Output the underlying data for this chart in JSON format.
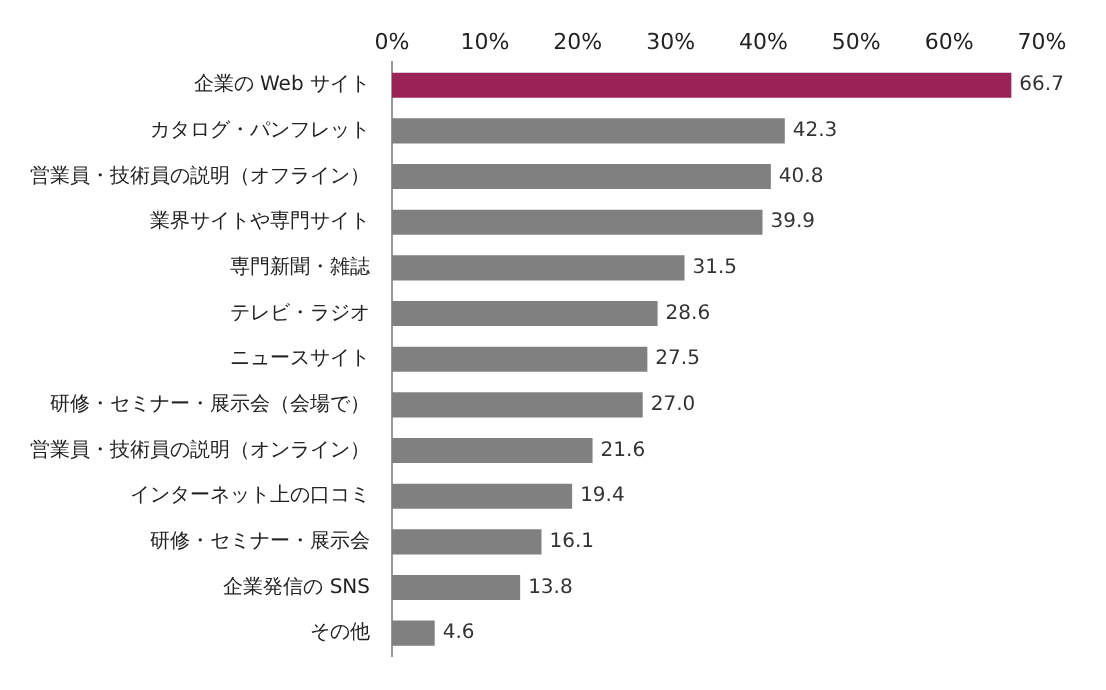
{
  "chart_data": {
    "type": "bar",
    "orientation": "horizontal",
    "categories": [
      "企業の Web サイト",
      "カタログ・パンフレット",
      "営業員・技術員の説明（オフライン）",
      "業界サイトや専門サイト",
      "専門新聞・雑誌",
      "テレビ・ラジオ",
      "ニュースサイト",
      "研修・セミナー・展示会（会場で）",
      "営業員・技術員の説明（オンライン）",
      "インターネット上の口コミ",
      "研修・セミナー・展示会",
      "企業発信の SNS",
      "その他"
    ],
    "values": [
      66.7,
      42.3,
      40.8,
      39.9,
      31.5,
      28.6,
      27.5,
      27.0,
      21.6,
      19.4,
      16.1,
      13.8,
      4.6
    ],
    "value_labels": [
      "66.7",
      "42.3",
      "40.8",
      "39.9",
      "31.5",
      "28.6",
      "27.5",
      "27.0",
      "21.6",
      "19.4",
      "16.1",
      "13.8",
      "4.6"
    ],
    "colors": [
      "#9b2257",
      "#808080",
      "#808080",
      "#808080",
      "#808080",
      "#808080",
      "#808080",
      "#808080",
      "#808080",
      "#808080",
      "#808080",
      "#808080",
      "#808080"
    ],
    "xlim": [
      0,
      70
    ],
    "xticks": [
      {
        "value": 0,
        "label": "0%"
      },
      {
        "value": 10,
        "label": "10%"
      },
      {
        "value": 20,
        "label": "20%"
      },
      {
        "value": 30,
        "label": "30%"
      },
      {
        "value": 40,
        "label": "40%"
      },
      {
        "value": 50,
        "label": "50%"
      },
      {
        "value": 60,
        "label": "60%"
      },
      {
        "value": 70,
        "label": "70%"
      }
    ],
    "grid": false,
    "legend": false
  }
}
